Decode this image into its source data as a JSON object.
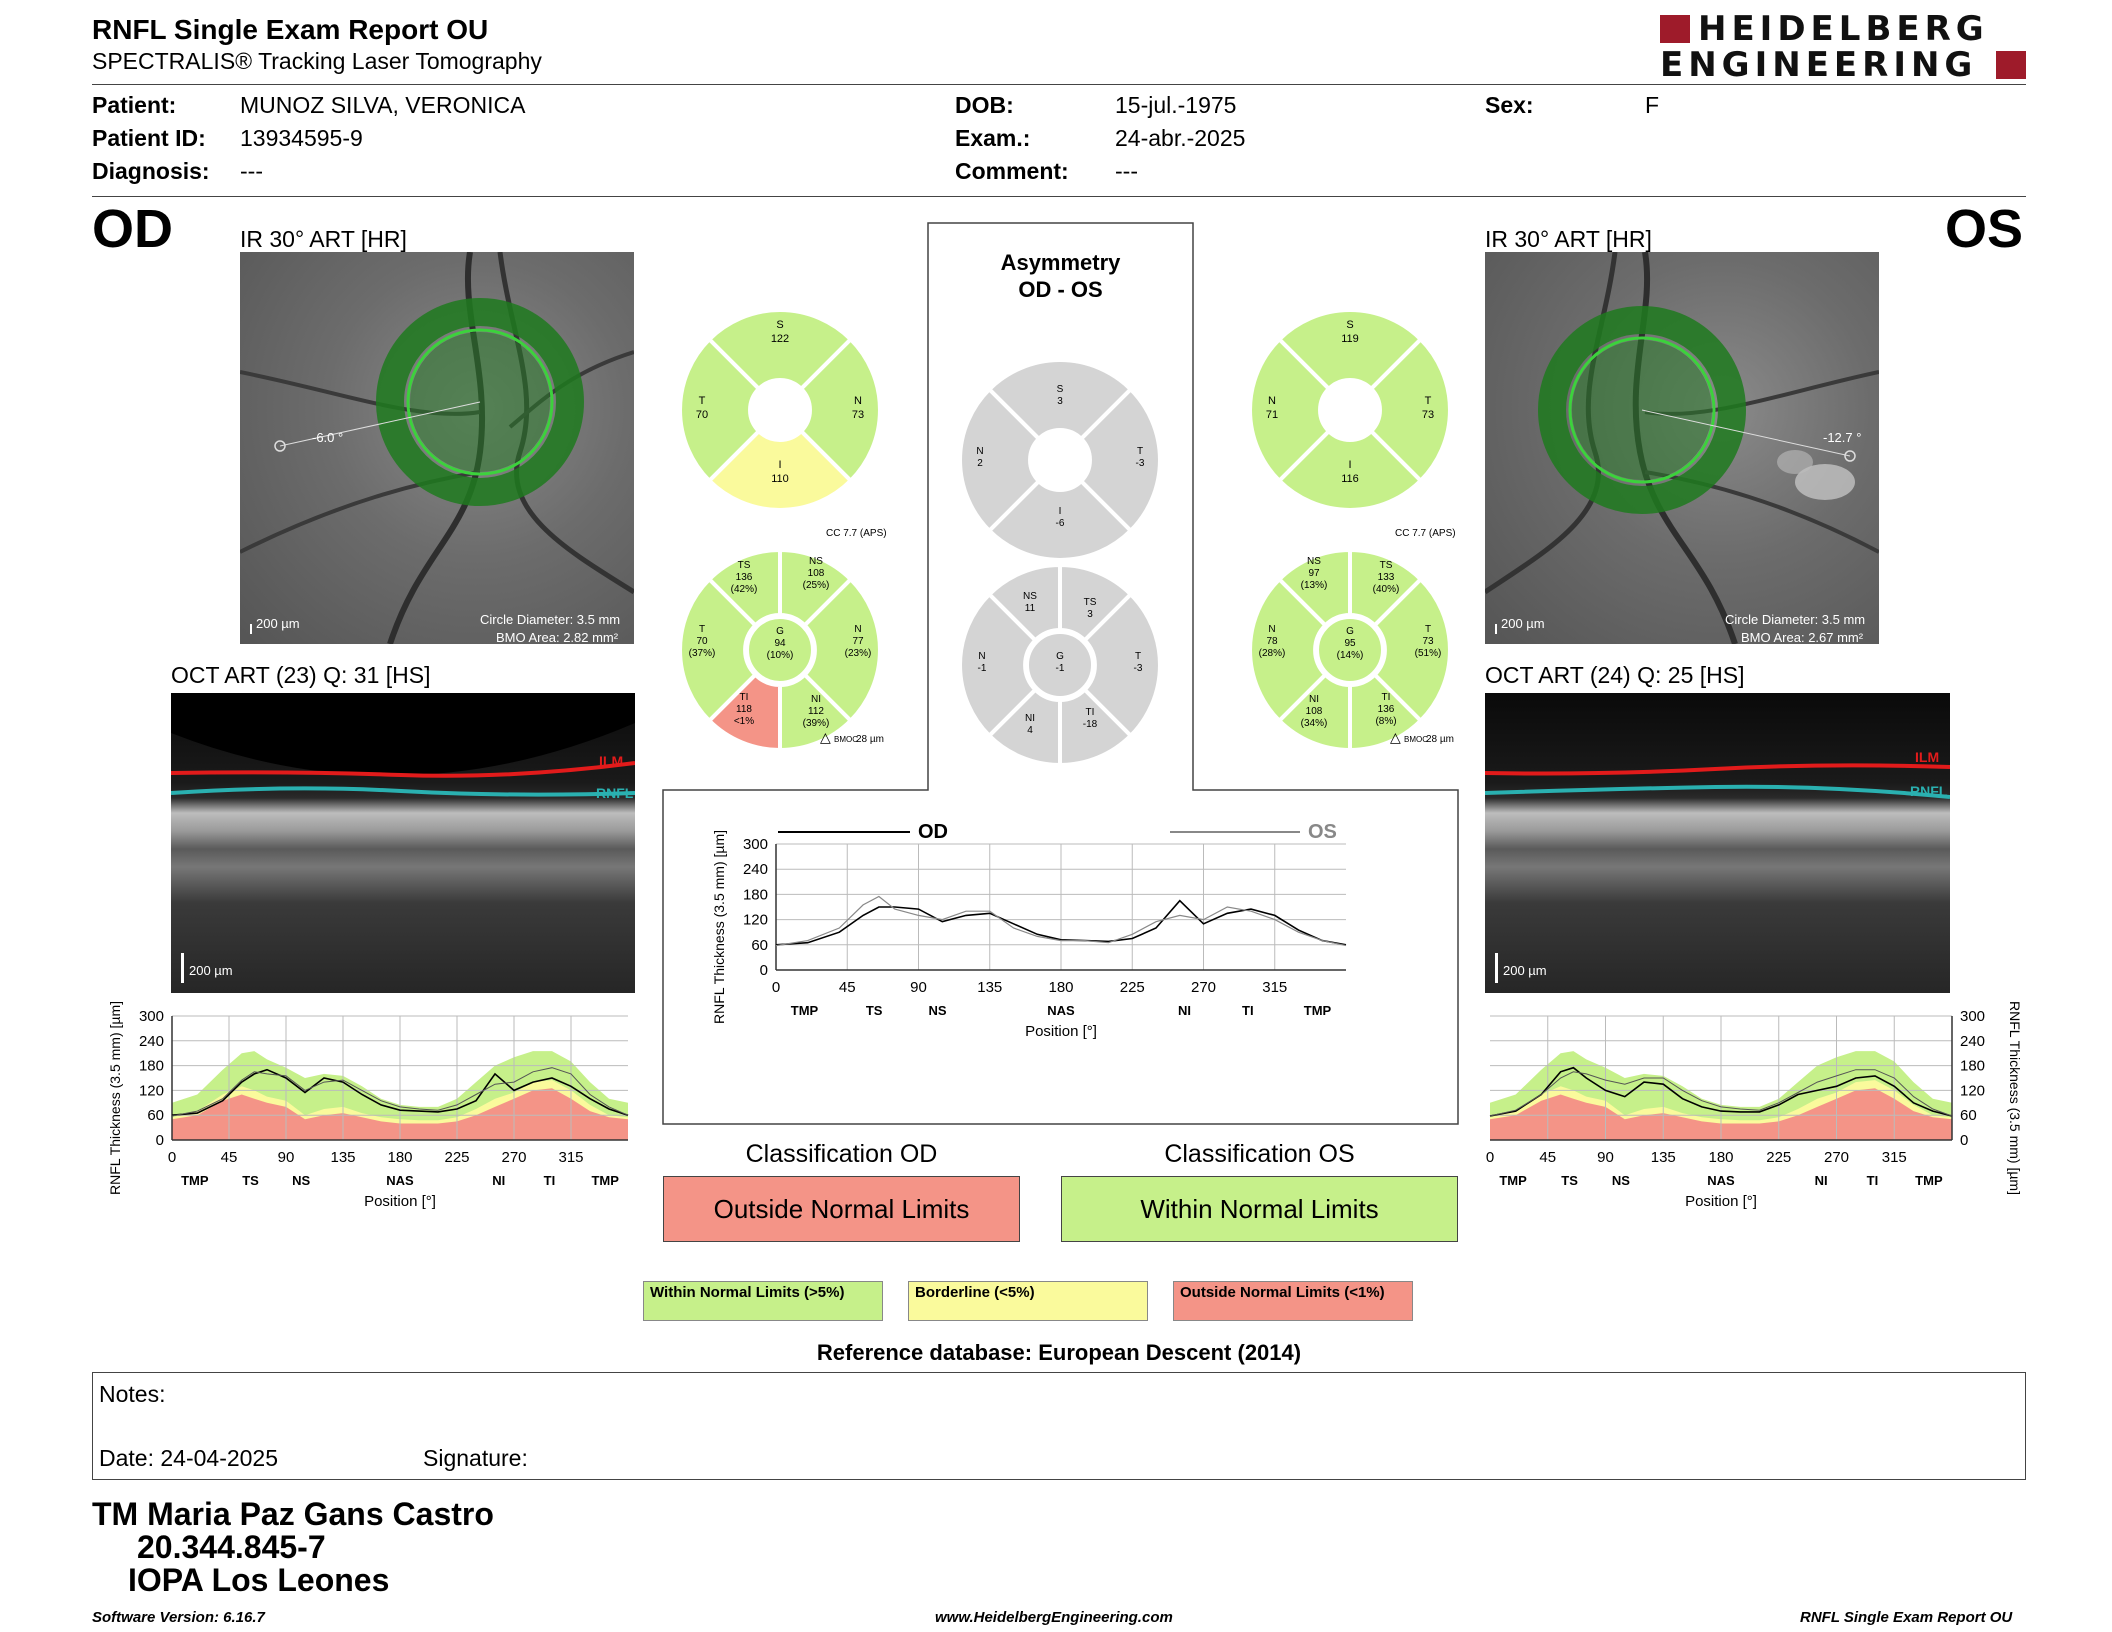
{
  "header": {
    "title": "RNFL Single Exam Report OU",
    "subtitle": "SPECTRALIS® Tracking Laser Tomography",
    "logo_line1": "HEIDELBERG",
    "logo_line2": "ENGINEERING"
  },
  "patient": {
    "patient_label": "Patient:",
    "patient_value": "MUNOZ SILVA, VERONICA",
    "id_label": "Patient ID:",
    "id_value": "13934595-9",
    "diag_label": "Diagnosis:",
    "diag_value": "---",
    "dob_label": "DOB:",
    "dob_value": "15-jul.-1975",
    "exam_label": "Exam.:",
    "exam_value": "24-abr.-2025",
    "comment_label": "Comment:",
    "comment_value": "---",
    "sex_label": "Sex:",
    "sex_value": "F"
  },
  "od": {
    "eye": "OD",
    "ir_title": "IR 30° ART [HR]",
    "angle": "-6.0 °",
    "scale": "200 µm",
    "circle_diameter": "Circle Diameter: 3.5 mm",
    "bmo_area": "BMO Area: 2.82 mm²",
    "oct_title": "OCT ART (23) Q: 31 [HS]",
    "oct_scale": "200 µm",
    "ilm": "ILM",
    "rnfl": "RNFL",
    "cc": "CC 7.7 (APS)",
    "bmoc": "28 µm",
    "quad": {
      "S": "122",
      "N": "73",
      "I": "110",
      "T": "70"
    },
    "sectors": {
      "TS": [
        "136",
        "(42%)"
      ],
      "NS": [
        "108",
        "(25%)"
      ],
      "T": [
        "70",
        "(37%)"
      ],
      "G": [
        "94",
        "(10%)"
      ],
      "N": [
        "77",
        "(23%)"
      ],
      "TI": [
        "118",
        "<1%"
      ],
      "NI": [
        "112",
        "(39%)"
      ]
    },
    "classification_title": "Classification OD",
    "classification": "Outside Normal Limits"
  },
  "os": {
    "eye": "OS",
    "ir_title": "IR 30° ART [HR]",
    "angle": "-12.7 °",
    "scale": "200 µm",
    "circle_diameter": "Circle Diameter: 3.5 mm",
    "bmo_area": "BMO Area: 2.67 mm²",
    "oct_title": "OCT ART (24) Q: 25 [HS]",
    "oct_scale": "200 µm",
    "ilm": "ILM",
    "rnfl": "RNFL",
    "cc": "CC 7.7 (APS)",
    "bmoc": "28 µm",
    "quad": {
      "S": "119",
      "N": "71",
      "I": "116",
      "T": "73"
    },
    "sectors": {
      "NS": [
        "97",
        "(13%)"
      ],
      "TS": [
        "133",
        "(40%)"
      ],
      "N": [
        "78",
        "(28%)"
      ],
      "G": [
        "95",
        "(14%)"
      ],
      "T": [
        "73",
        "(51%)"
      ],
      "NI": [
        "108",
        "(34%)"
      ],
      "TI": [
        "136",
        "(8%)"
      ]
    },
    "classification_title": "Classification OS",
    "classification": "Within Normal Limits"
  },
  "asymmetry": {
    "title1": "Asymmetry",
    "title2": "OD - OS",
    "quad": {
      "S": "3",
      "N": "2",
      "T": "-3",
      "I": "-6"
    },
    "sectors": {
      "NS": "11",
      "TS": "3",
      "N": "-1",
      "G": "-1",
      "T": "-3",
      "NI": "4",
      "TI": "-18"
    }
  },
  "sector_labels": {
    "S": "S",
    "N": "N",
    "I": "I",
    "T": "T",
    "TS": "TS",
    "NS": "NS",
    "G": "G",
    "TI": "TI",
    "NI": "NI",
    "bmoc": "BMOC"
  },
  "chart_labels": {
    "ylabel": "RNFL Thickness (3.5 mm) [µm]",
    "xlabel": "Position [°]",
    "od_legend": "OD",
    "os_legend": "OS"
  },
  "chart_data": [
    {
      "type": "line",
      "name": "OD RNFL profile",
      "xlabel": "Position [°]",
      "ylabel": "RNFL Thickness (3.5 mm) [µm]",
      "ylim": [
        0,
        300
      ],
      "xlim": [
        0,
        360
      ],
      "xticks": [
        0,
        45,
        90,
        135,
        180,
        225,
        270,
        315
      ],
      "yticks": [
        0,
        60,
        120,
        180,
        240,
        300
      ],
      "sector_ticks": [
        {
          "x": 18,
          "label": "TMP"
        },
        {
          "x": 62,
          "label": "TS"
        },
        {
          "x": 102,
          "label": "NS"
        },
        {
          "x": 180,
          "label": "NAS"
        },
        {
          "x": 258,
          "label": "NI"
        },
        {
          "x": 298,
          "label": "TI"
        },
        {
          "x": 342,
          "label": "TMP"
        }
      ],
      "x": [
        0,
        20,
        40,
        55,
        65,
        75,
        90,
        105,
        120,
        135,
        150,
        165,
        180,
        195,
        210,
        225,
        240,
        255,
        270,
        285,
        300,
        315,
        330,
        345,
        360
      ],
      "series": [
        {
          "values": [
            60,
            65,
            95,
            140,
            160,
            170,
            150,
            115,
            150,
            140,
            110,
            85,
            72,
            70,
            68,
            75,
            95,
            160,
            120,
            140,
            150,
            130,
            100,
            75,
            60
          ]
        },
        {
          "values": [
            58,
            70,
            100,
            145,
            165,
            160,
            155,
            120,
            140,
            145,
            120,
            95,
            80,
            75,
            72,
            85,
            110,
            135,
            140,
            165,
            175,
            160,
            110,
            80,
            60
          ]
        }
      ],
      "bands": {
        "outside_max": [
          50,
          60,
          95,
          110,
          100,
          90,
          80,
          50,
          60,
          65,
          55,
          45,
          40,
          40,
          40,
          45,
          60,
          80,
          100,
          120,
          125,
          100,
          70,
          55,
          50
        ],
        "borderline_max": [
          55,
          70,
          110,
          130,
          120,
          105,
          95,
          60,
          75,
          80,
          65,
          55,
          50,
          48,
          48,
          55,
          75,
          100,
          115,
          140,
          145,
          120,
          85,
          60,
          55
        ],
        "normal_max": [
          90,
          110,
          170,
          210,
          215,
          195,
          175,
          150,
          160,
          155,
          130,
          100,
          85,
          80,
          80,
          100,
          140,
          180,
          200,
          215,
          215,
          190,
          140,
          100,
          90
        ]
      }
    },
    {
      "type": "line",
      "name": "Asymmetry OD vs OS",
      "xlabel": "Position [°]",
      "ylabel": "RNFL Thickness (3.5 mm) [µm]",
      "ylim": [
        0,
        300
      ],
      "xlim": [
        0,
        360
      ],
      "xticks": [
        0,
        45,
        90,
        135,
        180,
        225,
        270,
        315
      ],
      "yticks": [
        0,
        60,
        120,
        180,
        240,
        300
      ],
      "sector_ticks": [
        {
          "x": 18,
          "label": "TMP"
        },
        {
          "x": 62,
          "label": "TS"
        },
        {
          "x": 102,
          "label": "NS"
        },
        {
          "x": 180,
          "label": "NAS"
        },
        {
          "x": 258,
          "label": "NI"
        },
        {
          "x": 298,
          "label": "TI"
        },
        {
          "x": 342,
          "label": "TMP"
        }
      ],
      "x": [
        0,
        20,
        40,
        55,
        65,
        75,
        90,
        105,
        120,
        135,
        150,
        165,
        180,
        195,
        210,
        225,
        240,
        255,
        270,
        285,
        300,
        315,
        330,
        345,
        360
      ],
      "series": [
        {
          "name": "OD",
          "values": [
            60,
            65,
            90,
            130,
            150,
            150,
            145,
            115,
            130,
            135,
            110,
            85,
            72,
            70,
            68,
            75,
            100,
            165,
            110,
            135,
            145,
            130,
            95,
            70,
            60
          ]
        },
        {
          "name": "OS",
          "values": [
            58,
            70,
            100,
            155,
            175,
            145,
            130,
            120,
            140,
            140,
            100,
            80,
            70,
            70,
            65,
            85,
            115,
            130,
            120,
            150,
            140,
            120,
            90,
            70,
            58
          ]
        }
      ]
    },
    {
      "type": "line",
      "name": "OS RNFL profile",
      "xlabel": "Position [°]",
      "ylabel": "RNFL Thickness (3.5 mm) [µm]",
      "ylim": [
        0,
        300
      ],
      "xlim": [
        0,
        360
      ],
      "xticks": [
        0,
        45,
        90,
        135,
        180,
        225,
        270,
        315
      ],
      "yticks": [
        0,
        60,
        120,
        180,
        240,
        300
      ],
      "sector_ticks": [
        {
          "x": 18,
          "label": "TMP"
        },
        {
          "x": 62,
          "label": "TS"
        },
        {
          "x": 102,
          "label": "NS"
        },
        {
          "x": 180,
          "label": "NAS"
        },
        {
          "x": 258,
          "label": "NI"
        },
        {
          "x": 298,
          "label": "TI"
        },
        {
          "x": 342,
          "label": "TMP"
        }
      ],
      "x": [
        0,
        20,
        40,
        55,
        65,
        75,
        90,
        105,
        120,
        135,
        150,
        165,
        180,
        195,
        210,
        225,
        240,
        255,
        270,
        285,
        300,
        315,
        330,
        345,
        360
      ],
      "series": [
        {
          "values": [
            58,
            70,
            110,
            165,
            175,
            150,
            120,
            105,
            140,
            135,
            100,
            80,
            70,
            68,
            68,
            85,
            110,
            120,
            130,
            150,
            155,
            130,
            90,
            70,
            58
          ]
        },
        {
          "values": [
            58,
            72,
            110,
            150,
            165,
            160,
            145,
            135,
            150,
            150,
            120,
            95,
            80,
            75,
            72,
            90,
            115,
            140,
            155,
            170,
            170,
            150,
            105,
            75,
            58
          ]
        }
      ],
      "bands": {
        "outside_max": [
          50,
          60,
          95,
          110,
          100,
          90,
          80,
          50,
          60,
          65,
          55,
          45,
          40,
          40,
          40,
          45,
          60,
          80,
          100,
          120,
          125,
          100,
          70,
          55,
          50
        ],
        "borderline_max": [
          55,
          70,
          110,
          130,
          120,
          105,
          95,
          60,
          75,
          80,
          65,
          55,
          50,
          48,
          48,
          55,
          75,
          100,
          115,
          140,
          145,
          120,
          85,
          60,
          55
        ],
        "normal_max": [
          90,
          110,
          170,
          210,
          215,
          195,
          175,
          150,
          160,
          155,
          130,
          100,
          85,
          80,
          80,
          100,
          140,
          180,
          200,
          215,
          215,
          190,
          140,
          100,
          90
        ]
      }
    }
  ],
  "legend": {
    "normal": "Within Normal Limits (>5%)",
    "borderline": "Borderline (<5%)",
    "outside": "Outside Normal Limits (<1%)"
  },
  "reference": "Reference database: European Descent (2014)",
  "notes": {
    "notes_label": "Notes:",
    "date_label": "Date: 24-04-2025",
    "signature_label": "Signature:"
  },
  "technician": {
    "name": "TM Maria Paz Gans Castro",
    "id": "20.344.845-7",
    "org": "IOPA Los Leones"
  },
  "footer": {
    "software": "Software Version: 6.16.7",
    "url": "www.HeidelbergEngineering.com",
    "report": "RNFL Single Exam Report OU"
  },
  "colors": {
    "normal": "#c6f08a",
    "borderline": "#fafa9c",
    "outside": "#f49487",
    "gray": "#d4d4d4",
    "scan_green": "#1f7a1f",
    "ilm": "#e21b1b",
    "rnfl": "#2ab0b0",
    "brand": "#9e1b2a"
  }
}
